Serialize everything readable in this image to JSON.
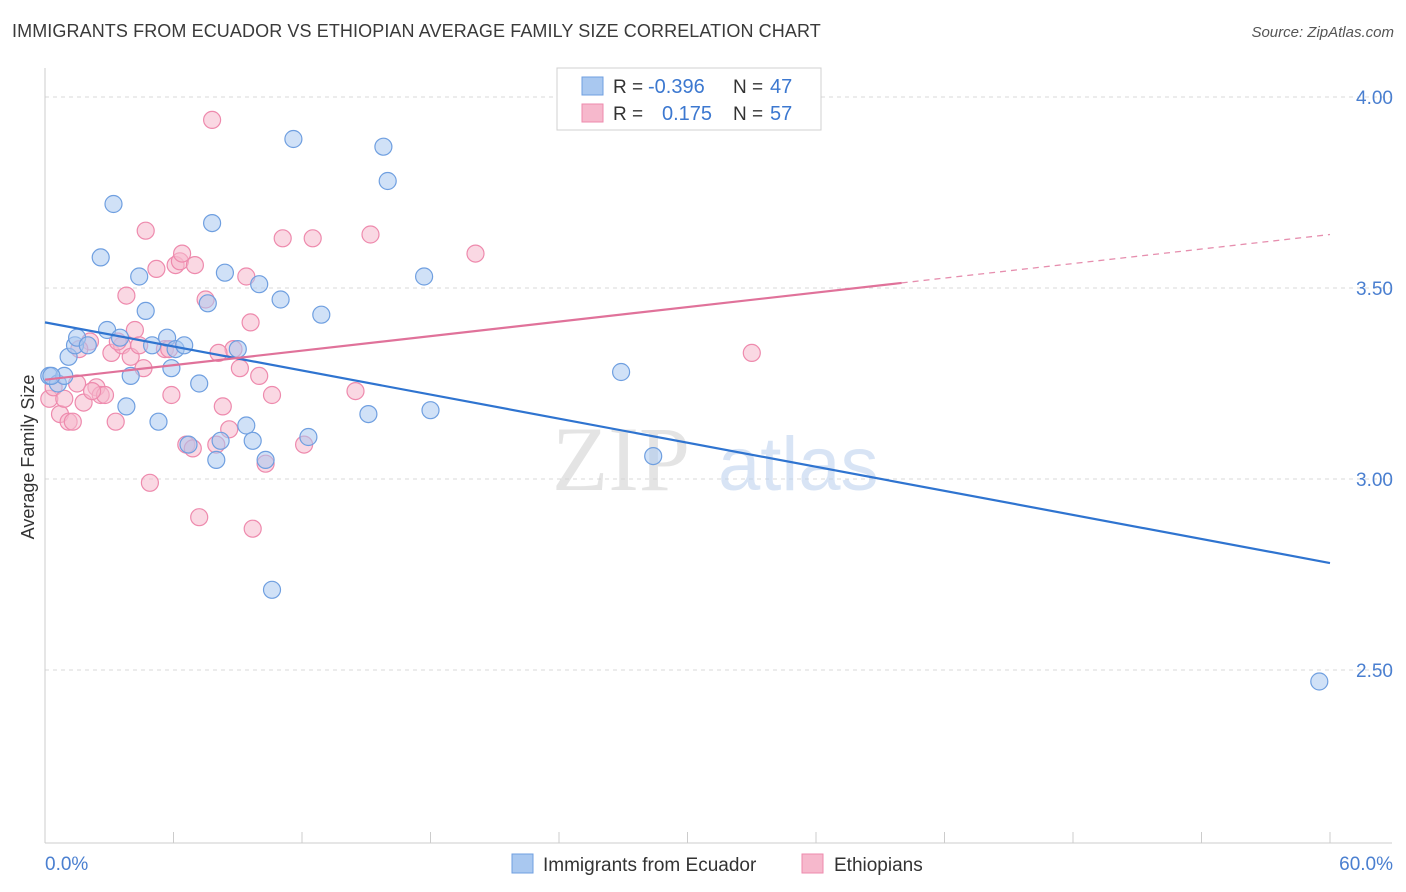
{
  "header": {
    "title": "IMMIGRANTS FROM ECUADOR VS ETHIOPIAN AVERAGE FAMILY SIZE CORRELATION CHART",
    "source": "Source: ZipAtlas.com"
  },
  "watermark": {
    "zip": "ZIP",
    "atlas": "atlas"
  },
  "colors": {
    "blue_fill": "#a9c8f0",
    "blue_stroke": "#6f9fe0",
    "blue_line": "#2f74d0",
    "pink_fill": "#f6b8cc",
    "pink_stroke": "#ee8aad",
    "pink_line": "#e0729a",
    "tick_text": "#4a7fd0",
    "grid": "#d9d9d9"
  },
  "legend": {
    "rows": [
      {
        "r_label": "R =",
        "r_value": "-0.396",
        "n_label": "N =",
        "n_value": "47"
      },
      {
        "r_label": "R =",
        "r_value": "0.175",
        "n_label": "N =",
        "n_value": "57"
      }
    ]
  },
  "bottom_legend": {
    "items": [
      {
        "label": "Immigrants from Ecuador"
      },
      {
        "label": "Ethiopians"
      }
    ]
  },
  "chart_data": {
    "type": "scatter",
    "title": "IMMIGRANTS FROM ECUADOR VS ETHIOPIAN AVERAGE FAMILY SIZE CORRELATION CHART",
    "xlabel": "",
    "ylabel": "Average Family Size",
    "xlim": [
      0,
      60
    ],
    "ylim": [
      2.0,
      4.15
    ],
    "x_tick_labels": [
      "0.0%",
      "60.0%"
    ],
    "y_ticks": [
      2.5,
      3.0,
      3.5,
      4.0
    ],
    "y_tick_labels": [
      "2.50",
      "3.00",
      "3.50",
      "4.00"
    ],
    "grid": true,
    "legend_position": "top-center",
    "series": [
      {
        "name": "Immigrants from Ecuador",
        "r": -0.396,
        "n": 47,
        "trend": {
          "x": [
            0,
            60
          ],
          "y": [
            3.41,
            2.78
          ],
          "dashed_from": null
        },
        "points": [
          [
            0.2,
            3.27
          ],
          [
            0.6,
            3.25
          ],
          [
            0.9,
            3.27
          ],
          [
            1.1,
            3.32
          ],
          [
            1.4,
            3.35
          ],
          [
            1.5,
            3.37
          ],
          [
            2.0,
            3.35
          ],
          [
            2.6,
            3.58
          ],
          [
            2.9,
            3.39
          ],
          [
            3.2,
            3.72
          ],
          [
            3.5,
            3.37
          ],
          [
            3.8,
            3.19
          ],
          [
            4.0,
            3.27
          ],
          [
            4.4,
            3.53
          ],
          [
            4.7,
            3.44
          ],
          [
            5.0,
            3.35
          ],
          [
            5.3,
            3.15
          ],
          [
            5.7,
            3.37
          ],
          [
            5.9,
            3.29
          ],
          [
            6.1,
            3.34
          ],
          [
            6.5,
            3.35
          ],
          [
            6.7,
            3.09
          ],
          [
            7.2,
            3.25
          ],
          [
            7.6,
            3.46
          ],
          [
            7.8,
            3.67
          ],
          [
            8.0,
            3.05
          ],
          [
            8.2,
            3.1
          ],
          [
            8.4,
            3.54
          ],
          [
            9.0,
            3.34
          ],
          [
            9.4,
            3.14
          ],
          [
            9.7,
            3.1
          ],
          [
            10.0,
            3.51
          ],
          [
            10.3,
            3.05
          ],
          [
            10.6,
            2.71
          ],
          [
            11.0,
            3.47
          ],
          [
            11.6,
            3.89
          ],
          [
            12.3,
            3.11
          ],
          [
            12.9,
            3.43
          ],
          [
            15.1,
            3.17
          ],
          [
            15.8,
            3.87
          ],
          [
            16.0,
            3.78
          ],
          [
            17.7,
            3.53
          ],
          [
            18.0,
            3.18
          ],
          [
            26.9,
            3.28
          ],
          [
            28.4,
            3.06
          ],
          [
            59.5,
            2.47
          ],
          [
            0.3,
            3.27
          ]
        ]
      },
      {
        "name": "Ethiopians",
        "r": 0.175,
        "n": 57,
        "trend": {
          "x": [
            0,
            60
          ],
          "y": [
            3.26,
            3.64
          ],
          "dashed_from": 40.0
        },
        "points": [
          [
            0.2,
            3.21
          ],
          [
            0.4,
            3.24
          ],
          [
            0.7,
            3.17
          ],
          [
            0.9,
            3.21
          ],
          [
            1.1,
            3.15
          ],
          [
            1.3,
            3.15
          ],
          [
            1.5,
            3.25
          ],
          [
            1.8,
            3.2
          ],
          [
            2.1,
            3.36
          ],
          [
            2.4,
            3.24
          ],
          [
            2.6,
            3.22
          ],
          [
            2.8,
            3.22
          ],
          [
            3.1,
            3.33
          ],
          [
            3.3,
            3.15
          ],
          [
            3.6,
            3.35
          ],
          [
            3.8,
            3.48
          ],
          [
            4.0,
            3.32
          ],
          [
            4.2,
            3.39
          ],
          [
            4.4,
            3.35
          ],
          [
            4.6,
            3.29
          ],
          [
            4.7,
            3.65
          ],
          [
            4.9,
            2.99
          ],
          [
            5.2,
            3.55
          ],
          [
            5.6,
            3.34
          ],
          [
            5.9,
            3.22
          ],
          [
            6.1,
            3.56
          ],
          [
            6.3,
            3.57
          ],
          [
            6.6,
            3.09
          ],
          [
            6.9,
            3.08
          ],
          [
            7.2,
            2.9
          ],
          [
            7.5,
            3.47
          ],
          [
            7.8,
            3.94
          ],
          [
            8.0,
            3.09
          ],
          [
            8.3,
            3.19
          ],
          [
            8.6,
            3.13
          ],
          [
            8.8,
            3.34
          ],
          [
            9.1,
            3.29
          ],
          [
            9.4,
            3.53
          ],
          [
            9.7,
            2.87
          ],
          [
            10.0,
            3.27
          ],
          [
            10.3,
            3.04
          ],
          [
            10.6,
            3.22
          ],
          [
            11.1,
            3.63
          ],
          [
            12.1,
            3.09
          ],
          [
            12.5,
            3.63
          ],
          [
            14.5,
            3.23
          ],
          [
            15.2,
            3.64
          ],
          [
            20.1,
            3.59
          ],
          [
            33.0,
            3.33
          ],
          [
            1.6,
            3.34
          ],
          [
            2.2,
            3.23
          ],
          [
            3.4,
            3.36
          ],
          [
            5.8,
            3.34
          ],
          [
            6.4,
            3.59
          ],
          [
            7.0,
            3.56
          ],
          [
            8.1,
            3.33
          ],
          [
            9.6,
            3.41
          ]
        ]
      }
    ]
  }
}
